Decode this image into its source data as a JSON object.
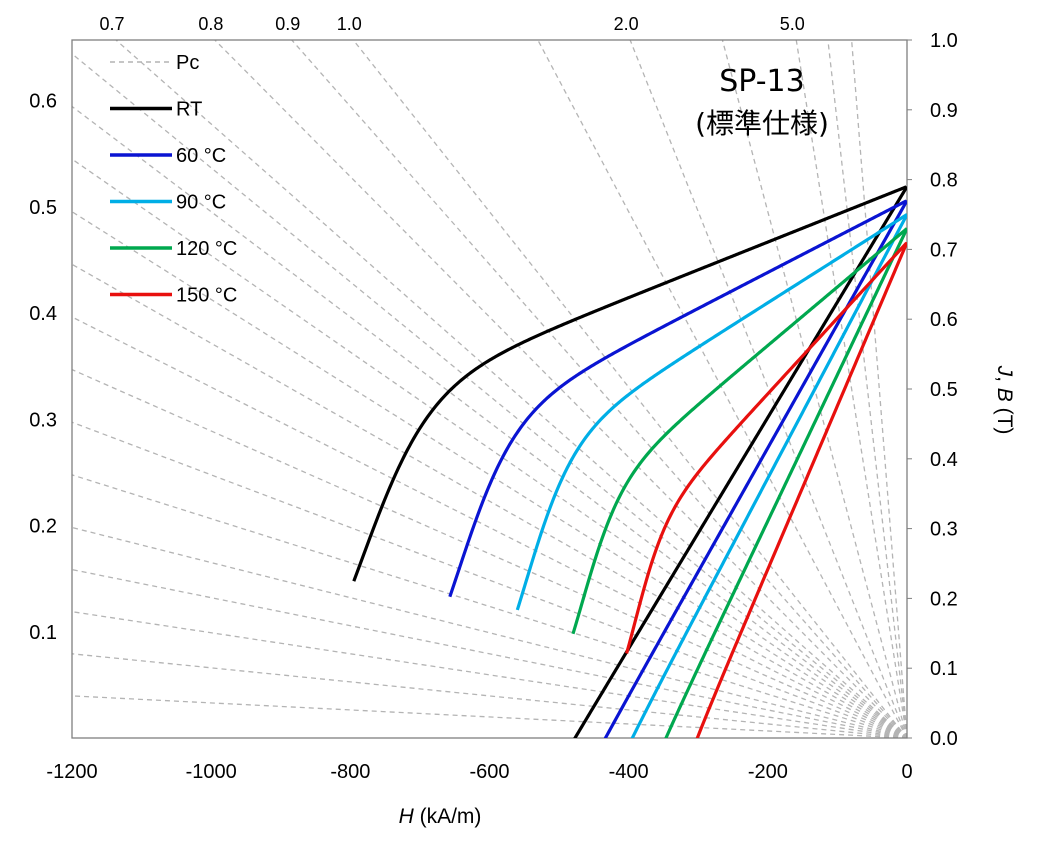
{
  "chart_data": {
    "type": "line",
    "title": "SP-13",
    "subtitle": "(標準仕様)",
    "xlabel": {
      "italic": "H",
      "unit": " (kA/m)"
    },
    "ylabel_right": {
      "italic": "J",
      "sep": ", ",
      "italic2": "B",
      "unit": " (T)"
    },
    "xlim": [
      -1200,
      0
    ],
    "ylim_right": [
      0.0,
      1.0
    ],
    "ylim_left": [
      0.0,
      0.6571
    ],
    "x_ticks": [
      "-1200",
      "-1000",
      "-800",
      "-600",
      "-400",
      "-200",
      "0"
    ],
    "x_tick_values": [
      -1200,
      -1000,
      -800,
      -600,
      -400,
      -200,
      0
    ],
    "y_right_ticks": [
      "0.0",
      "0.1",
      "0.2",
      "0.3",
      "0.4",
      "0.5",
      "0.6",
      "0.7",
      "0.8",
      "0.9",
      "1.0"
    ],
    "y_right_tick_values": [
      0.0,
      0.1,
      0.2,
      0.3,
      0.4,
      0.5,
      0.6,
      0.7,
      0.8,
      0.9,
      1.0
    ],
    "y_left_ticks": [
      "0.1",
      "0.2",
      "0.3",
      "0.4",
      "0.5",
      "0.6"
    ],
    "y_left_tick_values": [
      0.1,
      0.2,
      0.3,
      0.4,
      0.5,
      0.6
    ],
    "pc_lines": {
      "name": "Pc",
      "color": "#b4b4b4",
      "labeled": [
        {
          "label": "0.7",
          "value": 0.7
        },
        {
          "label": "0.8",
          "value": 0.8
        },
        {
          "label": "0.9",
          "value": 0.9
        },
        {
          "label": "1.0",
          "value": 1.0
        },
        {
          "label": "2.0",
          "value": 2.0
        },
        {
          "label": "5.0",
          "value": 5.0
        }
      ],
      "unlabeled": [
        0.04,
        0.08,
        0.12,
        0.16,
        0.2,
        0.25,
        0.3,
        0.35,
        0.4,
        0.45,
        0.5,
        0.55,
        0.6,
        0.65,
        1.5,
        3.0,
        7.0,
        10.0
      ]
    },
    "series": [
      {
        "name": "RT",
        "color": "#000000",
        "Br": 0.79,
        "HcJ": -790,
        "HcB": -487,
        "knee_w": 48
      },
      {
        "name": "60 °C",
        "color": "#0a14d2",
        "Br": 0.77,
        "HcJ": -652,
        "HcB": -445,
        "knee_w": 40
      },
      {
        "name": "90 °C",
        "color": "#00aee6",
        "Br": 0.75,
        "HcJ": -555,
        "HcB": -408,
        "knee_w": 34
      },
      {
        "name": "120 °C",
        "color": "#00a84f",
        "Br": 0.73,
        "HcJ": -475,
        "HcB": -360,
        "knee_w": 28
      },
      {
        "name": "150 °C",
        "color": "#e8100e",
        "Br": 0.71,
        "HcJ": -398,
        "HcB": -315,
        "knee_w": 22
      }
    ],
    "legend": {
      "placement": "top-left",
      "entries": [
        "Pc",
        "RT",
        "60 °C",
        "90 °C",
        "120 °C",
        "150 °C"
      ]
    }
  }
}
